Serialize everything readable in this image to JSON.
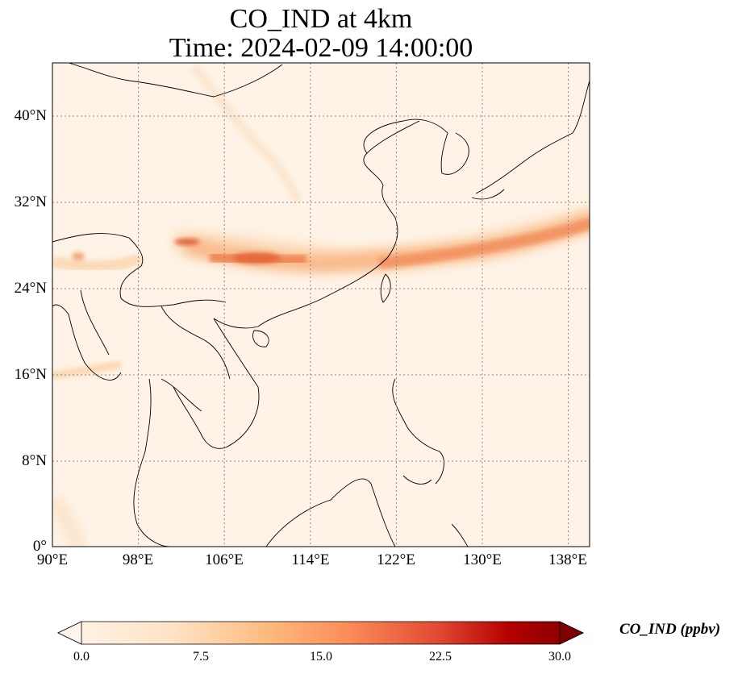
{
  "title": {
    "line1": "CO_IND at 4km",
    "line2": "Time: 2024-02-09 14:00:00"
  },
  "map": {
    "variable": "CO_IND",
    "extent": {
      "lon": [
        90,
        140
      ],
      "lat": [
        0,
        40
      ]
    },
    "lat_ticks": [
      {
        "value": 0,
        "label": "0°"
      },
      {
        "value": 8,
        "label": "8°N"
      },
      {
        "value": 16,
        "label": "16°N"
      },
      {
        "value": 24,
        "label": "24°N"
      },
      {
        "value": 32,
        "label": "32°N"
      },
      {
        "value": 40,
        "label": "40°N"
      }
    ],
    "lon_ticks": [
      {
        "value": 90,
        "label": "90°E"
      },
      {
        "value": 98,
        "label": "98°E"
      },
      {
        "value": 106,
        "label": "106°E"
      },
      {
        "value": 114,
        "label": "114°E"
      },
      {
        "value": 122,
        "label": "122°E"
      },
      {
        "value": 130,
        "label": "130°E"
      },
      {
        "value": 138,
        "label": "138°E"
      }
    ],
    "gridlines": "dotted"
  },
  "colorbar": {
    "label": "CO_IND (ppbv)",
    "min": 0,
    "max": 30,
    "ticks": [
      {
        "value": 0,
        "label": "0.0"
      },
      {
        "value": 7.5,
        "label": "7.5"
      },
      {
        "value": 15,
        "label": "15.0"
      },
      {
        "value": 22.5,
        "label": "22.5"
      },
      {
        "value": 30,
        "label": "30.0"
      }
    ],
    "extend": "both",
    "colors": [
      "#fff5eb",
      "#fdd0a2",
      "#fd8d3c",
      "#d94801",
      "#a50f15",
      "#7f0000"
    ]
  }
}
